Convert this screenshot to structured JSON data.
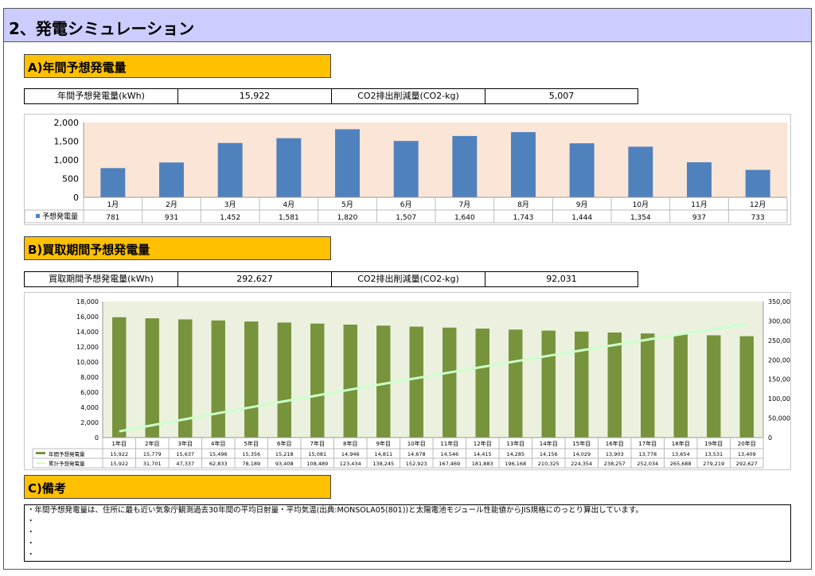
{
  "page": {
    "title": "2、発電シミュレーション"
  },
  "section_a": {
    "title": "A)年間予想発電量",
    "summary": {
      "label1": "年間予想発電量(kWh)",
      "value1": "15,922",
      "label2": "CO2排出削減量(CO2-kg)",
      "value2": "5,007"
    }
  },
  "section_b": {
    "title": "B)買取期間予想発電量",
    "summary": {
      "label1": "買取期間予想発電量(kWh)",
      "value1": "292,627",
      "label2": "CO2排出削減量(CO2-kg)",
      "value2": "92,031"
    }
  },
  "section_c": {
    "title": "C)備考",
    "notes": [
      "・年間予想発電量は、住所に最も近い気象庁観測過去30年間の平均日射量・平均気温(出典:MONSOLA05(801))と太陽電池モジュール性能値からJIS規格にのっとり算出しています。",
      "・",
      "・",
      "・",
      "・"
    ]
  },
  "colors": {
    "header_bg": "#ccccff",
    "section_title_bg": "#ffc000",
    "monthly_bar": "#4f81bd",
    "monthly_plot_bg": "#fbe5d6",
    "annual_bar": "#77933c",
    "cumulative_line": "#ccffcc",
    "annual_plot_bg": "#ebf1de"
  },
  "chart_data": [
    {
      "type": "bar",
      "categories": [
        "1月",
        "2月",
        "3月",
        "4月",
        "5月",
        "6月",
        "7月",
        "8月",
        "9月",
        "10月",
        "11月",
        "12月"
      ],
      "series": [
        {
          "name": "予想発電量",
          "values": [
            781,
            931,
            1452,
            1581,
            1820,
            1507,
            1640,
            1743,
            1444,
            1354,
            937,
            733
          ]
        }
      ],
      "value_labels": [
        "781",
        "931",
        "1,452",
        "1,581",
        "1,820",
        "1,507",
        "1,640",
        "1,743",
        "1,444",
        "1,354",
        "937",
        "733"
      ],
      "y_ticks": [
        "0",
        "500",
        "1,000",
        "1,500",
        "2,000"
      ],
      "ylim": [
        0,
        2000
      ],
      "grid": false,
      "legend": "data-table"
    },
    {
      "type": "bar",
      "categories": [
        "1年目",
        "2年目",
        "3年目",
        "4年目",
        "5年目",
        "6年目",
        "7年目",
        "8年目",
        "9年目",
        "10年目",
        "11年目",
        "12年目",
        "13年目",
        "14年目",
        "15年目",
        "16年目",
        "17年目",
        "18年目",
        "19年目",
        "20年目"
      ],
      "series": [
        {
          "name": "年間予想発電量",
          "type": "bar",
          "axis": "left",
          "values": [
            15922,
            15779,
            15637,
            15496,
            15356,
            15218,
            15081,
            14946,
            14811,
            14678,
            14546,
            14415,
            14285,
            14156,
            14029,
            13903,
            13778,
            13654,
            13531,
            13409
          ]
        },
        {
          "name": "累計予想発電量",
          "type": "line",
          "axis": "right",
          "values": [
            15922,
            31701,
            47337,
            62833,
            78189,
            93408,
            108489,
            123434,
            138245,
            152923,
            167469,
            181883,
            196168,
            210325,
            224354,
            238257,
            252034,
            265688,
            279219,
            292627
          ]
        }
      ],
      "value_labels": [
        [
          "15,922",
          "15,779",
          "15,637",
          "15,496",
          "15,356",
          "15,218",
          "15,081",
          "14,946",
          "14,811",
          "14,678",
          "14,546",
          "14,415",
          "14,285",
          "14,156",
          "14,029",
          "13,903",
          "13,778",
          "13,654",
          "13,531",
          "13,409"
        ],
        [
          "15,922",
          "31,701",
          "47,337",
          "62,833",
          "78,189",
          "93,408",
          "108,489",
          "123,434",
          "138,245",
          "152,923",
          "167,469",
          "181,883",
          "196,168",
          "210,325",
          "224,354",
          "238,257",
          "252,034",
          "265,688",
          "279,219",
          "292,627"
        ]
      ],
      "y_ticks": [
        "0",
        "2,000",
        "4,000",
        "6,000",
        "8,000",
        "10,000",
        "12,000",
        "14,000",
        "16,000",
        "18,000"
      ],
      "y2_ticks": [
        "0",
        "50,000",
        "100,000",
        "150,000",
        "200,000",
        "250,000",
        "300,000",
        "350,000"
      ],
      "ylim": [
        0,
        18000
      ],
      "y2lim": [
        0,
        350000
      ],
      "grid": false,
      "legend": "data-table"
    }
  ]
}
